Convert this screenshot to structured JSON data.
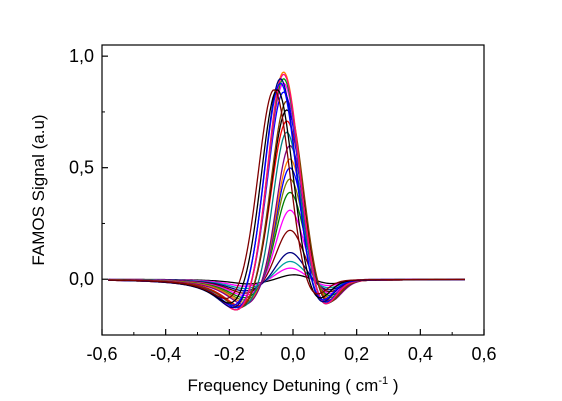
{
  "chart_data": {
    "type": "line",
    "title": "",
    "xlabel": "Frequency Detuning ( cm",
    "xlabel_superscript": "-1",
    "xlabel_suffix": " )",
    "ylabel": "FAMOS Signal (a.u)",
    "xlim": [
      -0.6,
      0.6
    ],
    "ylim": [
      -0.25,
      1.05
    ],
    "x_ticks": [
      -0.6,
      -0.4,
      -0.2,
      0.0,
      0.2,
      0.4,
      0.6
    ],
    "x_tick_labels": [
      "-0,6",
      "-0,4",
      "-0,2",
      "0,0",
      "0,2",
      "0,4",
      "0,6"
    ],
    "y_ticks": [
      0.0,
      0.5,
      1.0
    ],
    "y_tick_labels": [
      "0,0",
      "0,5",
      "1,0"
    ],
    "grid": false,
    "legend": "none",
    "x_range_of_curves": [
      -0.58,
      0.54
    ],
    "series": [
      {
        "color": "#000000",
        "peak_x": 0.0,
        "peak": 0.02,
        "trough": -0.02
      },
      {
        "color": "#ff00ff",
        "peak_x": -0.01,
        "peak": 0.05,
        "trough": -0.03
      },
      {
        "color": "#00a0a0",
        "peak_x": -0.01,
        "peak": 0.08,
        "trough": -0.04
      },
      {
        "color": "#000080",
        "peak_x": -0.01,
        "peak": 0.12,
        "trough": -0.05
      },
      {
        "color": "#800000",
        "peak_x": -0.01,
        "peak": 0.22,
        "trough": -0.06
      },
      {
        "color": "#ff00ff",
        "peak_x": -0.01,
        "peak": 0.31,
        "trough": -0.07
      },
      {
        "color": "#008000",
        "peak_x": -0.01,
        "peak": 0.39,
        "trough": -0.08
      },
      {
        "color": "#808000",
        "peak_x": -0.01,
        "peak": 0.45,
        "trough": -0.09
      },
      {
        "color": "#0000ff",
        "peak_x": -0.01,
        "peak": 0.5,
        "trough": -0.1
      },
      {
        "color": "#ff8000",
        "peak_x": -0.01,
        "peak": 0.54,
        "trough": -0.1
      },
      {
        "color": "#800080",
        "peak_x": -0.01,
        "peak": 0.6,
        "trough": -0.11
      },
      {
        "color": "#008080",
        "peak_x": -0.02,
        "peak": 0.66,
        "trough": -0.12
      },
      {
        "color": "#ff0000",
        "peak_x": -0.02,
        "peak": 0.71,
        "trough": -0.12
      },
      {
        "color": "#000000",
        "peak_x": -0.02,
        "peak": 0.76,
        "trough": -0.13
      },
      {
        "color": "#804000",
        "peak_x": -0.02,
        "peak": 0.8,
        "trough": -0.13
      },
      {
        "color": "#0000ff",
        "peak_x": -0.03,
        "peak": 0.84,
        "trough": -0.13
      },
      {
        "color": "#ff00ff",
        "peak_x": -0.03,
        "peak": 0.88,
        "trough": -0.14
      },
      {
        "color": "#00a000",
        "peak_x": -0.03,
        "peak": 0.9,
        "trough": -0.14
      },
      {
        "color": "#ff8000",
        "peak_x": -0.03,
        "peak": 0.93,
        "trough": -0.14
      },
      {
        "color": "#ff0080",
        "peak_x": -0.03,
        "peak": 0.92,
        "trough": -0.14
      },
      {
        "color": "#000080",
        "peak_x": -0.04,
        "peak": 0.9,
        "trough": -0.13
      },
      {
        "color": "#0000ff",
        "peak_x": -0.04,
        "peak": 0.88,
        "trough": -0.12
      },
      {
        "color": "#000000",
        "peak_x": -0.05,
        "peak": 0.85,
        "trough": -0.11
      },
      {
        "color": "#800000",
        "peak_x": -0.06,
        "peak": 0.85,
        "trough": -0.09
      }
    ]
  }
}
